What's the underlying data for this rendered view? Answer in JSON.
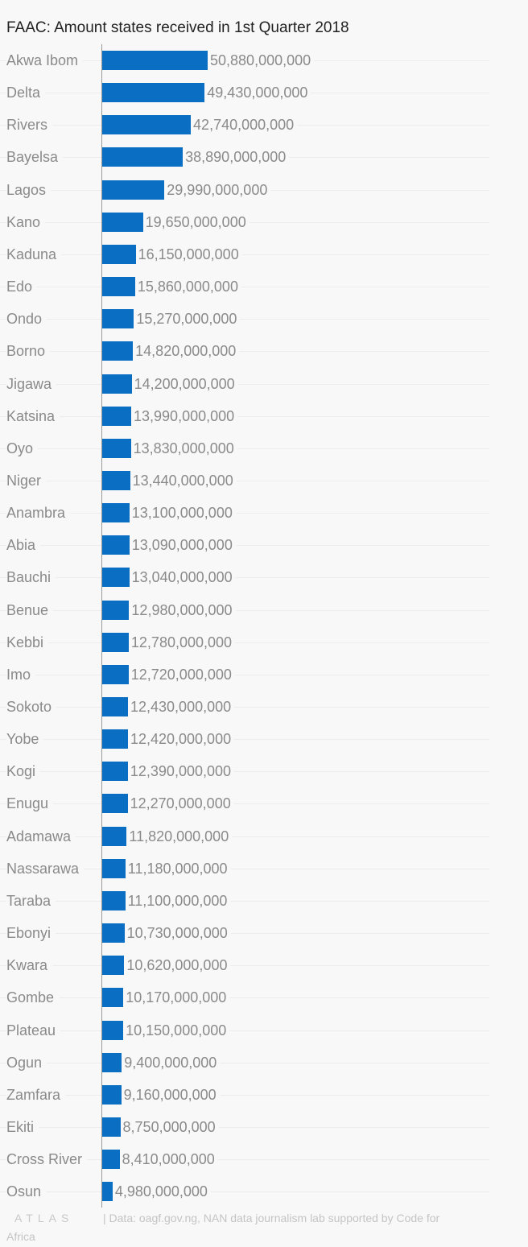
{
  "title": "FAAC: Amount states received in 1st Quarter 2018",
  "footer": {
    "logo": "ATLAS",
    "source_line1": "| Data: oagf.gov.ng, NAN data journalism lab supported by Code for",
    "source_line2": "Africa"
  },
  "colors": {
    "bar": "#0a6fc2",
    "background": "#f8f8f8",
    "label": "#8a8a8a"
  },
  "chart_data": {
    "type": "bar",
    "orientation": "horizontal",
    "title": "FAAC: Amount states received in 1st Quarter 2018",
    "xlabel": "",
    "ylabel": "",
    "grid": true,
    "legend": null,
    "categories": [
      "Akwa Ibom",
      "Delta",
      "Rivers",
      "Bayelsa",
      "Lagos",
      "Kano",
      "Kaduna",
      "Edo",
      "Ondo",
      "Borno",
      "Jigawa",
      "Katsina",
      "Oyo",
      "Niger",
      "Anambra",
      "Abia",
      "Bauchi",
      "Benue",
      "Kebbi",
      "Imo",
      "Sokoto",
      "Yobe",
      "Kogi",
      "Enugu",
      "Adamawa",
      "Nassarawa",
      "Taraba",
      "Ebonyi",
      "Kwara",
      "Gombe",
      "Plateau",
      "Ogun",
      "Zamfara",
      "Ekiti",
      "Cross River",
      "Osun"
    ],
    "values": [
      50880000000,
      49430000000,
      42740000000,
      38890000000,
      29990000000,
      19650000000,
      16150000000,
      15860000000,
      15270000000,
      14820000000,
      14200000000,
      13990000000,
      13830000000,
      13440000000,
      13100000000,
      13090000000,
      13040000000,
      12980000000,
      12780000000,
      12720000000,
      12430000000,
      12420000000,
      12390000000,
      12270000000,
      11820000000,
      11180000000,
      11100000000,
      10730000000,
      10620000000,
      10170000000,
      10150000000,
      9400000000,
      9160000000,
      8750000000,
      8410000000,
      4980000000
    ],
    "value_labels": [
      "50,880,000,000",
      "49,430,000,000",
      "42,740,000,000",
      "38,890,000,000",
      "29,990,000,000",
      "19,650,000,000",
      "16,150,000,000",
      "15,860,000,000",
      "15,270,000,000",
      "14,820,000,000",
      "14,200,000,000",
      "13,990,000,000",
      "13,830,000,000",
      "13,440,000,000",
      "13,100,000,000",
      "13,090,000,000",
      "13,040,000,000",
      "12,980,000,000",
      "12,780,000,000",
      "12,720,000,000",
      "12,430,000,000",
      "12,420,000,000",
      "12,390,000,000",
      "12,270,000,000",
      "11,820,000,000",
      "11,180,000,000",
      "11,100,000,000",
      "10,730,000,000",
      "10,620,000,000",
      "10,170,000,000",
      "10,150,000,000",
      "9,400,000,000",
      "9,160,000,000",
      "8,750,000,000",
      "8,410,000,000",
      "4,980,000,000"
    ]
  }
}
